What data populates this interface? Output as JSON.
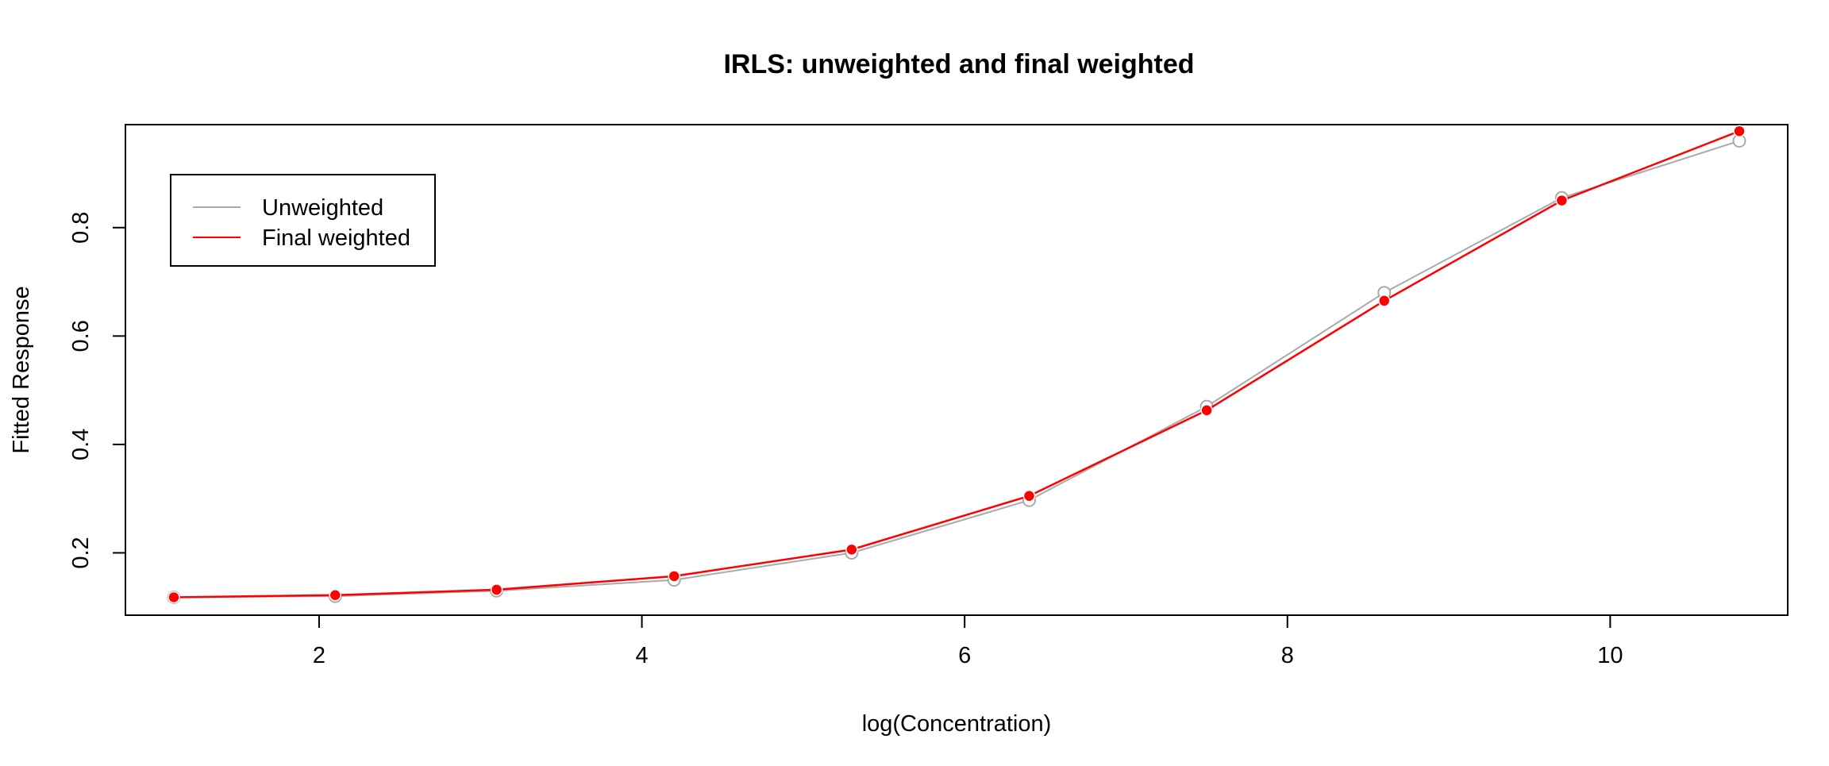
{
  "chart_data": {
    "type": "line",
    "title": "IRLS: unweighted and final weighted",
    "xlabel": "log(Concentration)",
    "ylabel": "Fitted Response",
    "xlim": [
      0.8,
      11.1
    ],
    "ylim": [
      0.085,
      0.99
    ],
    "x_ticks": [
      2,
      4,
      6,
      8,
      10
    ],
    "y_ticks": [
      0.2,
      0.4,
      0.6,
      0.8
    ],
    "grid": false,
    "legend_position": "top-left",
    "x": [
      1.1,
      2.1,
      3.1,
      4.2,
      5.3,
      6.4,
      7.5,
      8.6,
      9.7,
      10.8
    ],
    "series": [
      {
        "name": "Unweighted",
        "color": "#aaaaaa",
        "marker": "open-circle",
        "values": [
          0.118,
          0.12,
          0.13,
          0.15,
          0.2,
          0.297,
          0.47,
          0.68,
          0.855,
          0.96
        ]
      },
      {
        "name": "Final weighted",
        "color": "#ff0000",
        "marker": "filled-circle",
        "values": [
          0.118,
          0.122,
          0.132,
          0.157,
          0.206,
          0.305,
          0.463,
          0.665,
          0.85,
          0.978
        ]
      }
    ]
  }
}
